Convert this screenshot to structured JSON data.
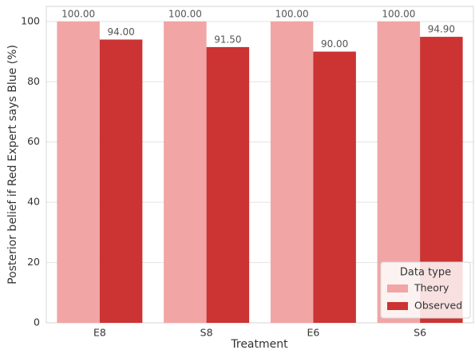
{
  "chart_data": {
    "type": "bar",
    "categories": [
      "E8",
      "S8",
      "E6",
      "S6"
    ],
    "series": [
      {
        "name": "Theory",
        "color": "#f1a5a5",
        "values": [
          100,
          100,
          100,
          100
        ],
        "value_labels": [
          "100.00",
          "100.00",
          "100.00",
          "100.00"
        ]
      },
      {
        "name": "Observed",
        "color": "#cc3333",
        "values": [
          94,
          91.5,
          90,
          94.9
        ],
        "value_labels": [
          "94.00",
          "91.50",
          "90.00",
          "94.90"
        ]
      }
    ],
    "x_label": "Treatment",
    "y_label": "Posterior belief if Red Expert says Blue (%)",
    "ylim": [
      0,
      105
    ],
    "yticks": [
      0,
      20,
      40,
      60,
      80,
      100
    ],
    "grid": true,
    "legend_title": "Data type",
    "legend_position": "lower right"
  }
}
